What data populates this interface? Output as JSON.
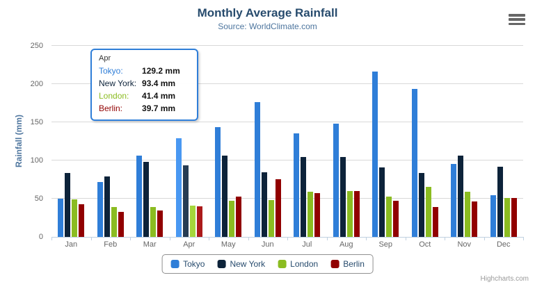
{
  "chart": {
    "title": "Monthly Average Rainfall",
    "subtitle": "Source: WorldClimate.com",
    "credit": "Highcharts.com"
  },
  "axes": {
    "y_title": "Rainfall (mm)",
    "y_ticks": [
      0,
      50,
      100,
      150,
      200,
      250
    ],
    "y_max": 250
  },
  "chart_data": {
    "type": "bar",
    "title": "Monthly Average Rainfall",
    "subtitle": "Source: WorldClimate.com",
    "xlabel": "",
    "ylabel": "Rainfall (mm)",
    "ylim": [
      0,
      250
    ],
    "grid": true,
    "legend_position": "bottom",
    "categories": [
      "Jan",
      "Feb",
      "Mar",
      "Apr",
      "May",
      "Jun",
      "Jul",
      "Aug",
      "Sep",
      "Oct",
      "Nov",
      "Dec"
    ],
    "series": [
      {
        "name": "Tokyo",
        "color": "#2f7ed8",
        "hover_color": "#4998f2",
        "values": [
          49.9,
          71.5,
          106.4,
          129.2,
          144.0,
          176.0,
          135.6,
          148.5,
          216.4,
          194.1,
          95.6,
          54.4
        ]
      },
      {
        "name": "New York",
        "color": "#0d233a",
        "hover_color": "#273d54",
        "values": [
          83.6,
          78.8,
          98.5,
          93.4,
          106.0,
          84.5,
          105.0,
          104.3,
          91.2,
          83.5,
          106.6,
          92.3
        ]
      },
      {
        "name": "London",
        "color": "#8bbc21",
        "hover_color": "#a5d63b",
        "values": [
          48.9,
          38.8,
          39.3,
          41.4,
          47.0,
          48.3,
          59.0,
          59.6,
          52.4,
          65.2,
          59.3,
          51.2
        ]
      },
      {
        "name": "Berlin",
        "color": "#910000",
        "hover_color": "#ab1a1a",
        "values": [
          42.4,
          33.2,
          34.5,
          39.7,
          52.6,
          75.5,
          57.4,
          60.4,
          47.6,
          39.1,
          46.8,
          51.1
        ]
      }
    ],
    "hovered_category_index": 3
  },
  "tooltip": {
    "header": "Apr",
    "border_color": "#2f7ed8",
    "rows": [
      {
        "label": "Tokyo:",
        "value": "129.2 mm",
        "color": "#2f7ed8"
      },
      {
        "label": "New York:",
        "value": "93.4 mm",
        "color": "#0d233a"
      },
      {
        "label": "London:",
        "value": "41.4 mm",
        "color": "#8bbc21"
      },
      {
        "label": "Berlin:",
        "value": "39.7 mm",
        "color": "#910000"
      }
    ]
  },
  "colors": {
    "title": "#274b6d",
    "subtitle": "#4d759e",
    "axis_labels": "#666666",
    "gridline": "#d8d8d8",
    "axis_line": "#c0d0e0",
    "legend_border": "#909090",
    "credit": "#999999"
  }
}
